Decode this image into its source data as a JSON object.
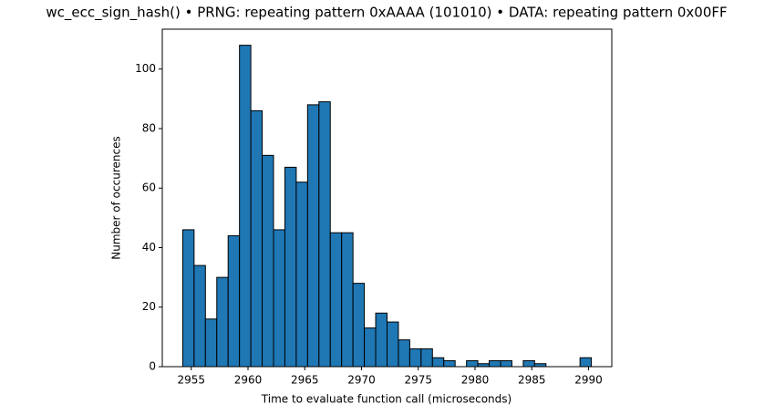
{
  "chart_data": {
    "type": "histogram",
    "title": "wc_ecc_sign_hash() • PRNG: repeating pattern 0xAAAA (101010) • DATA: repeating pattern 0x00FF",
    "x_label": "Time to evaluate function call (microseconds)",
    "y_label": "Number of occurences",
    "bins": [
      2954.25,
      2955.25,
      2956.25,
      2957.25,
      2958.25,
      2959.25,
      2960.25,
      2961.25,
      2962.25,
      2963.25,
      2964.25,
      2965.25,
      2966.25,
      2967.25,
      2968.25,
      2969.25,
      2970.25,
      2971.25,
      2972.25,
      2973.25,
      2974.25,
      2975.25,
      2976.25,
      2977.25,
      2978.25,
      2979.25,
      2980.25,
      2981.25,
      2982.25,
      2983.25,
      2984.25,
      2985.25,
      2986.25,
      2987.25,
      2988.25,
      2989.25,
      2990.25
    ],
    "values": [
      46,
      34,
      16,
      30,
      44,
      108,
      86,
      71,
      46,
      67,
      62,
      88,
      89,
      45,
      45,
      28,
      13,
      18,
      15,
      9,
      6,
      6,
      3,
      2,
      0,
      2,
      1,
      2,
      2,
      0,
      2,
      1,
      0,
      0,
      0,
      3
    ],
    "color": "#1f77b4",
    "edgecolor": "#000000",
    "xlim": [
      2952.45,
      2992.05
    ],
    "xticks": [
      2955,
      2960,
      2965,
      2970,
      2975,
      2980,
      2985,
      2990
    ],
    "ylim": [
      0,
      113.4
    ],
    "yticks": [
      0,
      20,
      40,
      60,
      80,
      100
    ],
    "grid": false
  }
}
